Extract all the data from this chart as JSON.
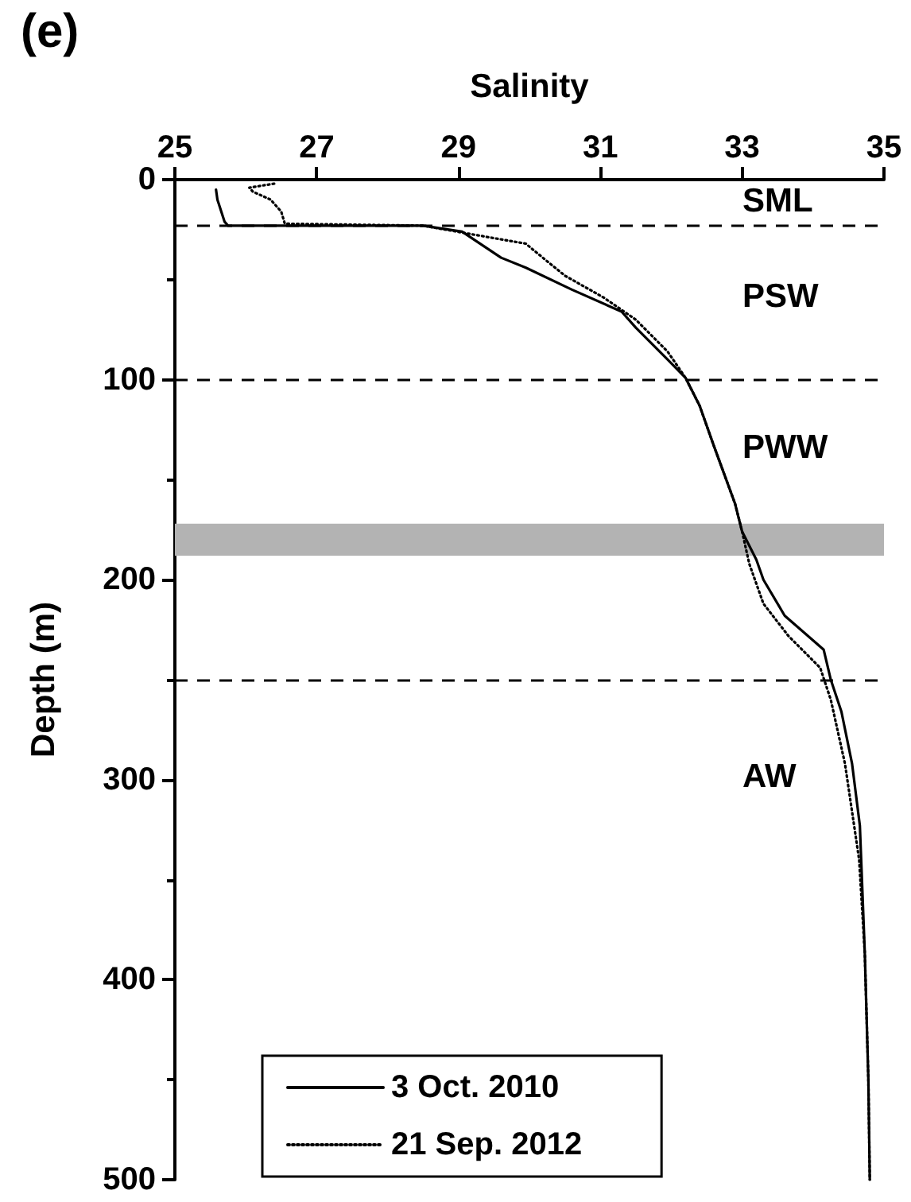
{
  "chart_data": {
    "type": "line",
    "title": "(e)",
    "xlabel": "Salinity",
    "ylabel": "Depth (m)",
    "xlim": [
      25,
      35
    ],
    "xticks": [
      25,
      27,
      29,
      31,
      33,
      35
    ],
    "ylim": [
      500,
      0
    ],
    "yticks": [
      0,
      100,
      200,
      300,
      400,
      500
    ],
    "grid": false,
    "legend": "bottom",
    "marker": "none",
    "series": [
      {
        "name": "3 Oct. 2010",
        "color": "#000000",
        "line_style": "solid",
        "x": [
          25.58,
          25.6,
          25.7,
          25.75,
          28.5,
          29.05,
          29.6,
          29.95,
          30.6,
          31.3,
          31.5,
          31.95,
          32.2,
          32.4,
          32.6,
          32.9,
          33.0,
          33.2,
          33.3,
          33.6,
          34.15,
          34.25,
          34.4,
          34.55,
          34.66,
          34.73,
          34.78,
          34.8
        ],
        "values": [
          5,
          10,
          21,
          23,
          23,
          26,
          39,
          44,
          55,
          66,
          74,
          90,
          99,
          113,
          133,
          162,
          176,
          190,
          200,
          218,
          235,
          250,
          266,
          292,
          323,
          387,
          450,
          500
        ]
      },
      {
        "name": "21 Sep. 2012",
        "color": "#000000",
        "line_style": "dotted",
        "x": [
          26.4,
          26.05,
          26.1,
          26.35,
          26.5,
          26.55,
          28.5,
          29.3,
          29.95,
          30.05,
          30.5,
          31.05,
          31.5,
          31.95,
          32.2,
          32.4,
          32.6,
          32.9,
          33.0,
          33.1,
          33.3,
          33.65,
          34.1,
          34.25,
          34.45,
          34.65,
          34.73,
          34.78,
          34.8
        ],
        "values": [
          2,
          4,
          6,
          10,
          16,
          22,
          23,
          28,
          32,
          35,
          48,
          59,
          70,
          86,
          99,
          113,
          133,
          162,
          176,
          192,
          212,
          228,
          244,
          260,
          292,
          340,
          387,
          450,
          500
        ]
      }
    ],
    "ref_lines": [
      {
        "axis": "y",
        "value": 23,
        "line_style": "dashed",
        "color": "#000000"
      },
      {
        "axis": "y",
        "value": 100,
        "line_style": "dashed",
        "color": "#000000"
      },
      {
        "axis": "y",
        "value": 250,
        "line_style": "dashed",
        "color": "#000000"
      }
    ],
    "bands": [
      {
        "axis": "y",
        "from": 172,
        "to": 188,
        "color": "#b3b3b3"
      }
    ],
    "annotations": [
      "SML",
      "PSW",
      "PWW",
      "AW"
    ]
  }
}
